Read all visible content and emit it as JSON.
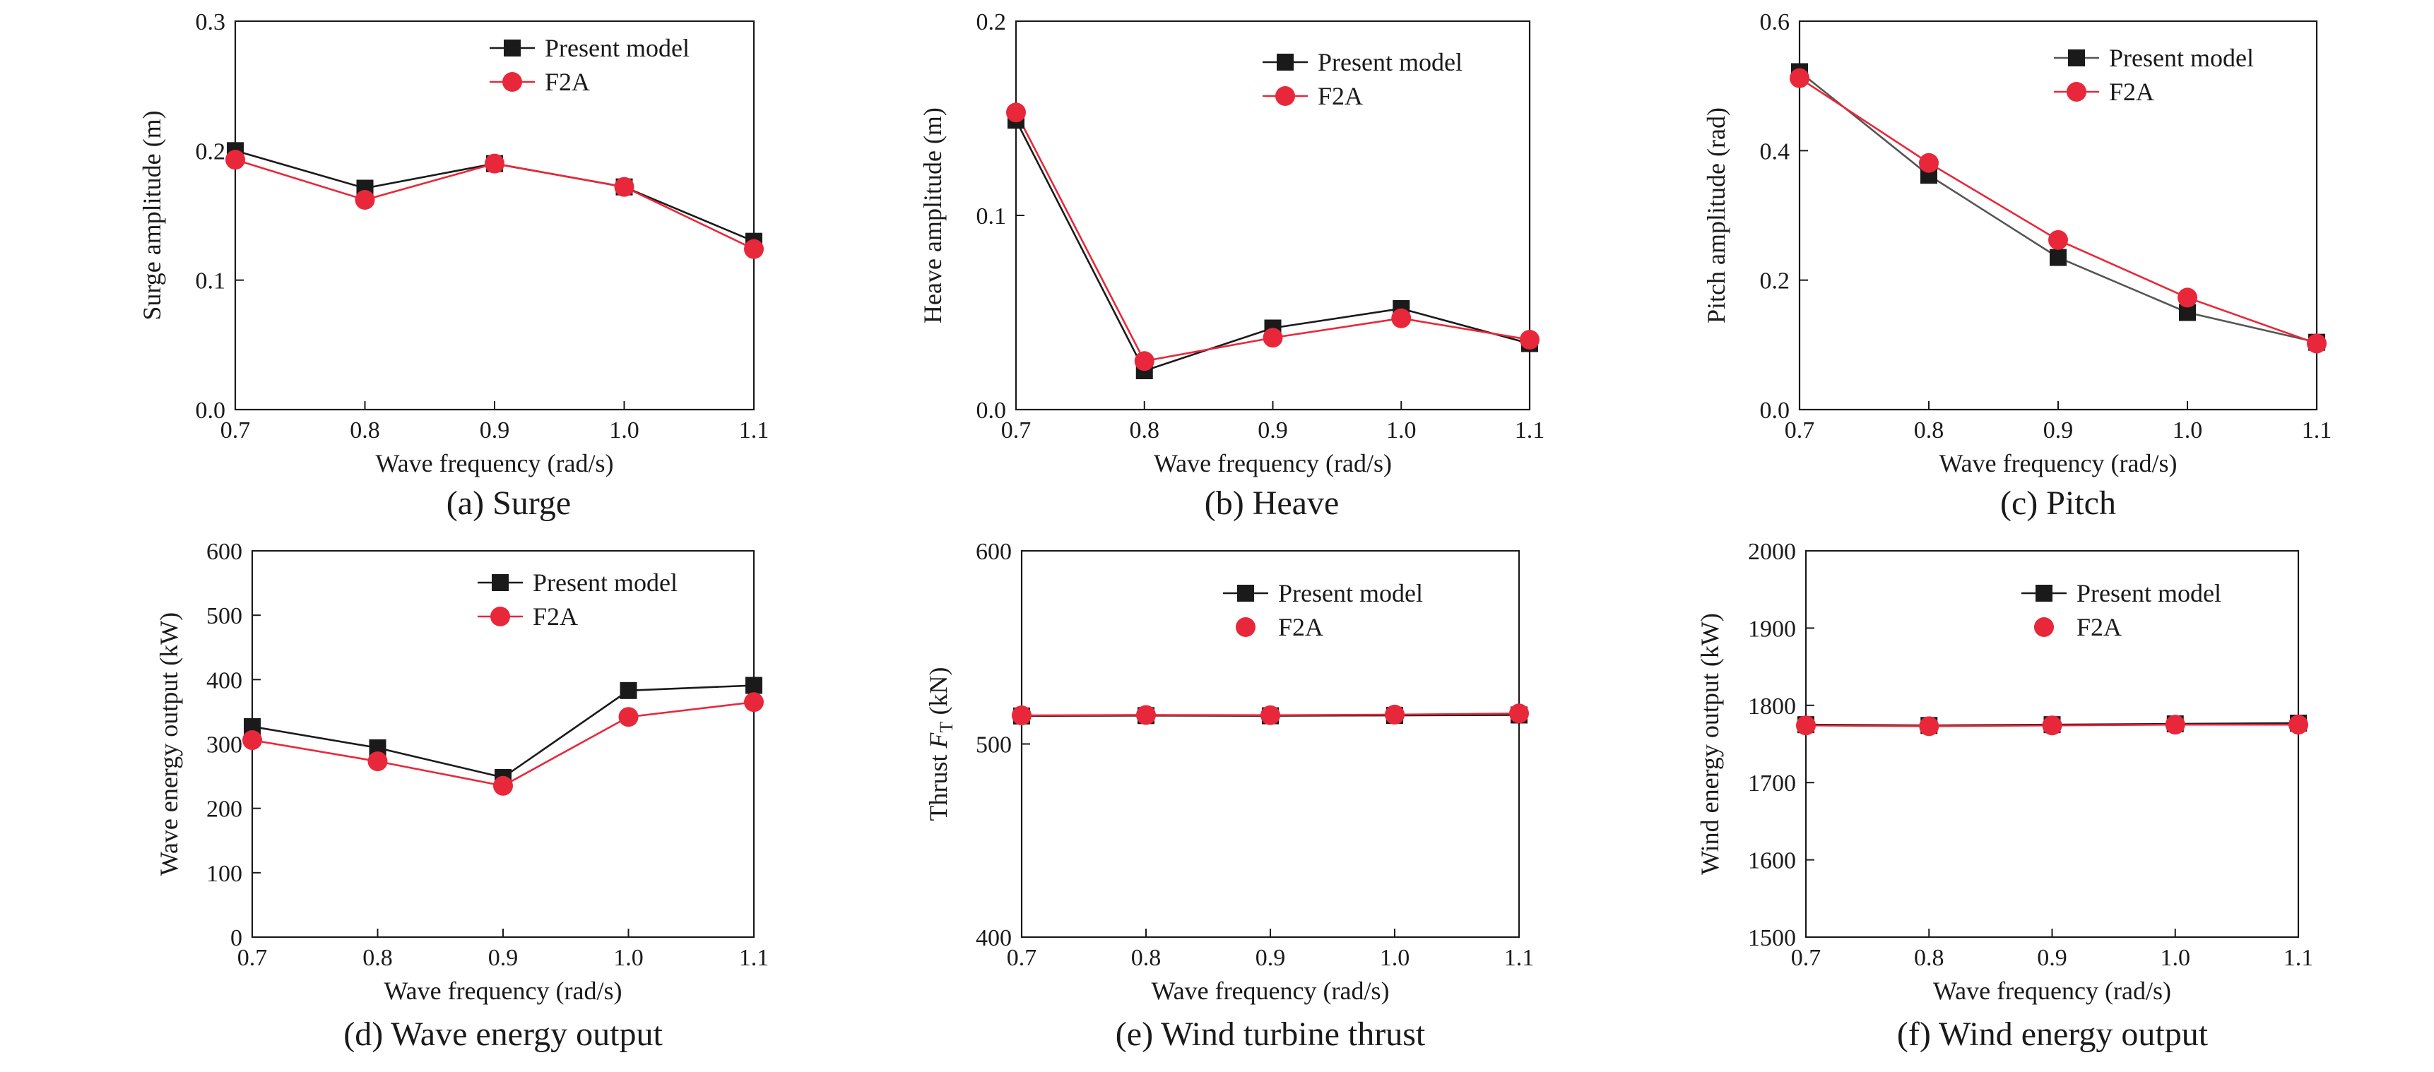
{
  "colors": {
    "present": "#1a1a1a",
    "f2a": "#e8283a",
    "present_line_c": "#555555"
  },
  "legend_labels": {
    "present": "Present model",
    "f2a": "F2A"
  },
  "chart_data": [
    {
      "type": "line",
      "caption": "(a) Surge",
      "xlabel": "Wave frequency (rad/s)",
      "ylabel": "Surge amplitude (m)",
      "x": [
        0.7,
        0.8,
        0.9,
        1.0,
        1.1
      ],
      "x_ticks": [
        "0.7",
        "0.8",
        "0.9",
        "1.0",
        "1.1"
      ],
      "xlim": [
        0.7,
        1.1
      ],
      "ylim": [
        0.0,
        0.3
      ],
      "y_ticks": [
        "0.0",
        "0.1",
        "0.2",
        "0.3"
      ],
      "legend": "top-right",
      "grid": false,
      "series": [
        {
          "name": "Present model",
          "values": [
            0.2,
            0.171,
            0.19,
            0.172,
            0.13
          ]
        },
        {
          "name": "F2A",
          "values": [
            0.193,
            0.162,
            0.19,
            0.172,
            0.124
          ]
        }
      ]
    },
    {
      "type": "line",
      "caption": "(b) Heave",
      "xlabel": "Wave frequency (rad/s)",
      "ylabel": "Heave amplitude (m)",
      "x": [
        0.7,
        0.8,
        0.9,
        1.0,
        1.1
      ],
      "x_ticks": [
        "0.7",
        "0.8",
        "0.9",
        "1.0",
        "1.1"
      ],
      "xlim": [
        0.7,
        1.1
      ],
      "ylim": [
        0.0,
        0.2
      ],
      "y_ticks": [
        "0.0",
        "0.1",
        "0.2"
      ],
      "legend": "top-right",
      "grid": false,
      "series": [
        {
          "name": "Present model",
          "values": [
            0.149,
            0.02,
            0.042,
            0.052,
            0.034
          ]
        },
        {
          "name": "F2A",
          "values": [
            0.153,
            0.025,
            0.037,
            0.047,
            0.036
          ]
        }
      ]
    },
    {
      "type": "line",
      "caption": "(c) Pitch",
      "xlabel": "Wave frequency (rad/s)",
      "ylabel": "Pitch amplitude (rad)",
      "x": [
        0.7,
        0.8,
        0.9,
        1.0,
        1.1
      ],
      "x_ticks": [
        "0.7",
        "0.8",
        "0.9",
        "1.0",
        "1.1"
      ],
      "xlim": [
        0.7,
        1.1
      ],
      "ylim": [
        0.0,
        0.6
      ],
      "y_ticks": [
        "0.0",
        "0.2",
        "0.4",
        "0.6"
      ],
      "legend": "top-right",
      "grid": false,
      "series": [
        {
          "name": "Present model",
          "values": [
            0.522,
            0.362,
            0.235,
            0.15,
            0.104
          ]
        },
        {
          "name": "F2A",
          "values": [
            0.512,
            0.381,
            0.262,
            0.173,
            0.102
          ]
        }
      ]
    },
    {
      "type": "line",
      "caption": "(d) Wave energy output",
      "xlabel": "Wave frequency (rad/s)",
      "ylabel": "Wave energy output (kW)",
      "x": [
        0.7,
        0.8,
        0.9,
        1.0,
        1.1
      ],
      "x_ticks": [
        "0.7",
        "0.8",
        "0.9",
        "1.0",
        "1.1"
      ],
      "xlim": [
        0.7,
        1.1
      ],
      "ylim": [
        0,
        600
      ],
      "y_ticks": [
        "0",
        "100",
        "200",
        "300",
        "400",
        "500",
        "600"
      ],
      "legend": "top-right",
      "grid": false,
      "series": [
        {
          "name": "Present model",
          "values": [
            327,
            294,
            248,
            383,
            391
          ]
        },
        {
          "name": "F2A",
          "values": [
            306,
            273,
            235,
            342,
            365
          ]
        }
      ]
    },
    {
      "type": "line",
      "caption": "(e) Wind turbine thrust",
      "xlabel": "Wave frequency (rad/s)",
      "ylabel_main": "Thrust ",
      "ylabel_var": "F",
      "ylabel_sub": "T",
      "ylabel_unit": " (kN)",
      "x": [
        0.7,
        0.8,
        0.9,
        1.0,
        1.1
      ],
      "x_ticks": [
        "0.7",
        "0.8",
        "0.9",
        "1.0",
        "1.1"
      ],
      "xlim": [
        0.7,
        1.1
      ],
      "ylim": [
        400,
        600
      ],
      "y_ticks": [
        "400",
        "500",
        "600"
      ],
      "legend": "top-right",
      "grid": false,
      "series": [
        {
          "name": "Present model",
          "values": [
            514.5,
            514.7,
            514.6,
            514.8,
            515.0
          ]
        },
        {
          "name": "F2A",
          "values": [
            514.8,
            515.0,
            514.9,
            515.2,
            515.8
          ]
        }
      ]
    },
    {
      "type": "line",
      "caption": "(f) Wind energy output",
      "xlabel": "Wave frequency (rad/s)",
      "ylabel": "Wind energy output (kW)",
      "x": [
        0.7,
        0.8,
        0.9,
        1.0,
        1.1
      ],
      "x_ticks": [
        "0.7",
        "0.8",
        "0.9",
        "1.0",
        "1.1"
      ],
      "xlim": [
        0.7,
        1.1
      ],
      "ylim": [
        1500,
        2000
      ],
      "y_ticks": [
        "1500",
        "1600",
        "1700",
        "1800",
        "1900",
        "2000"
      ],
      "legend": "top-right",
      "grid": false,
      "series": [
        {
          "name": "Present model",
          "values": [
            1775,
            1774,
            1775,
            1776,
            1777
          ]
        },
        {
          "name": "F2A",
          "values": [
            1774,
            1773,
            1774,
            1775,
            1775
          ]
        }
      ]
    }
  ]
}
